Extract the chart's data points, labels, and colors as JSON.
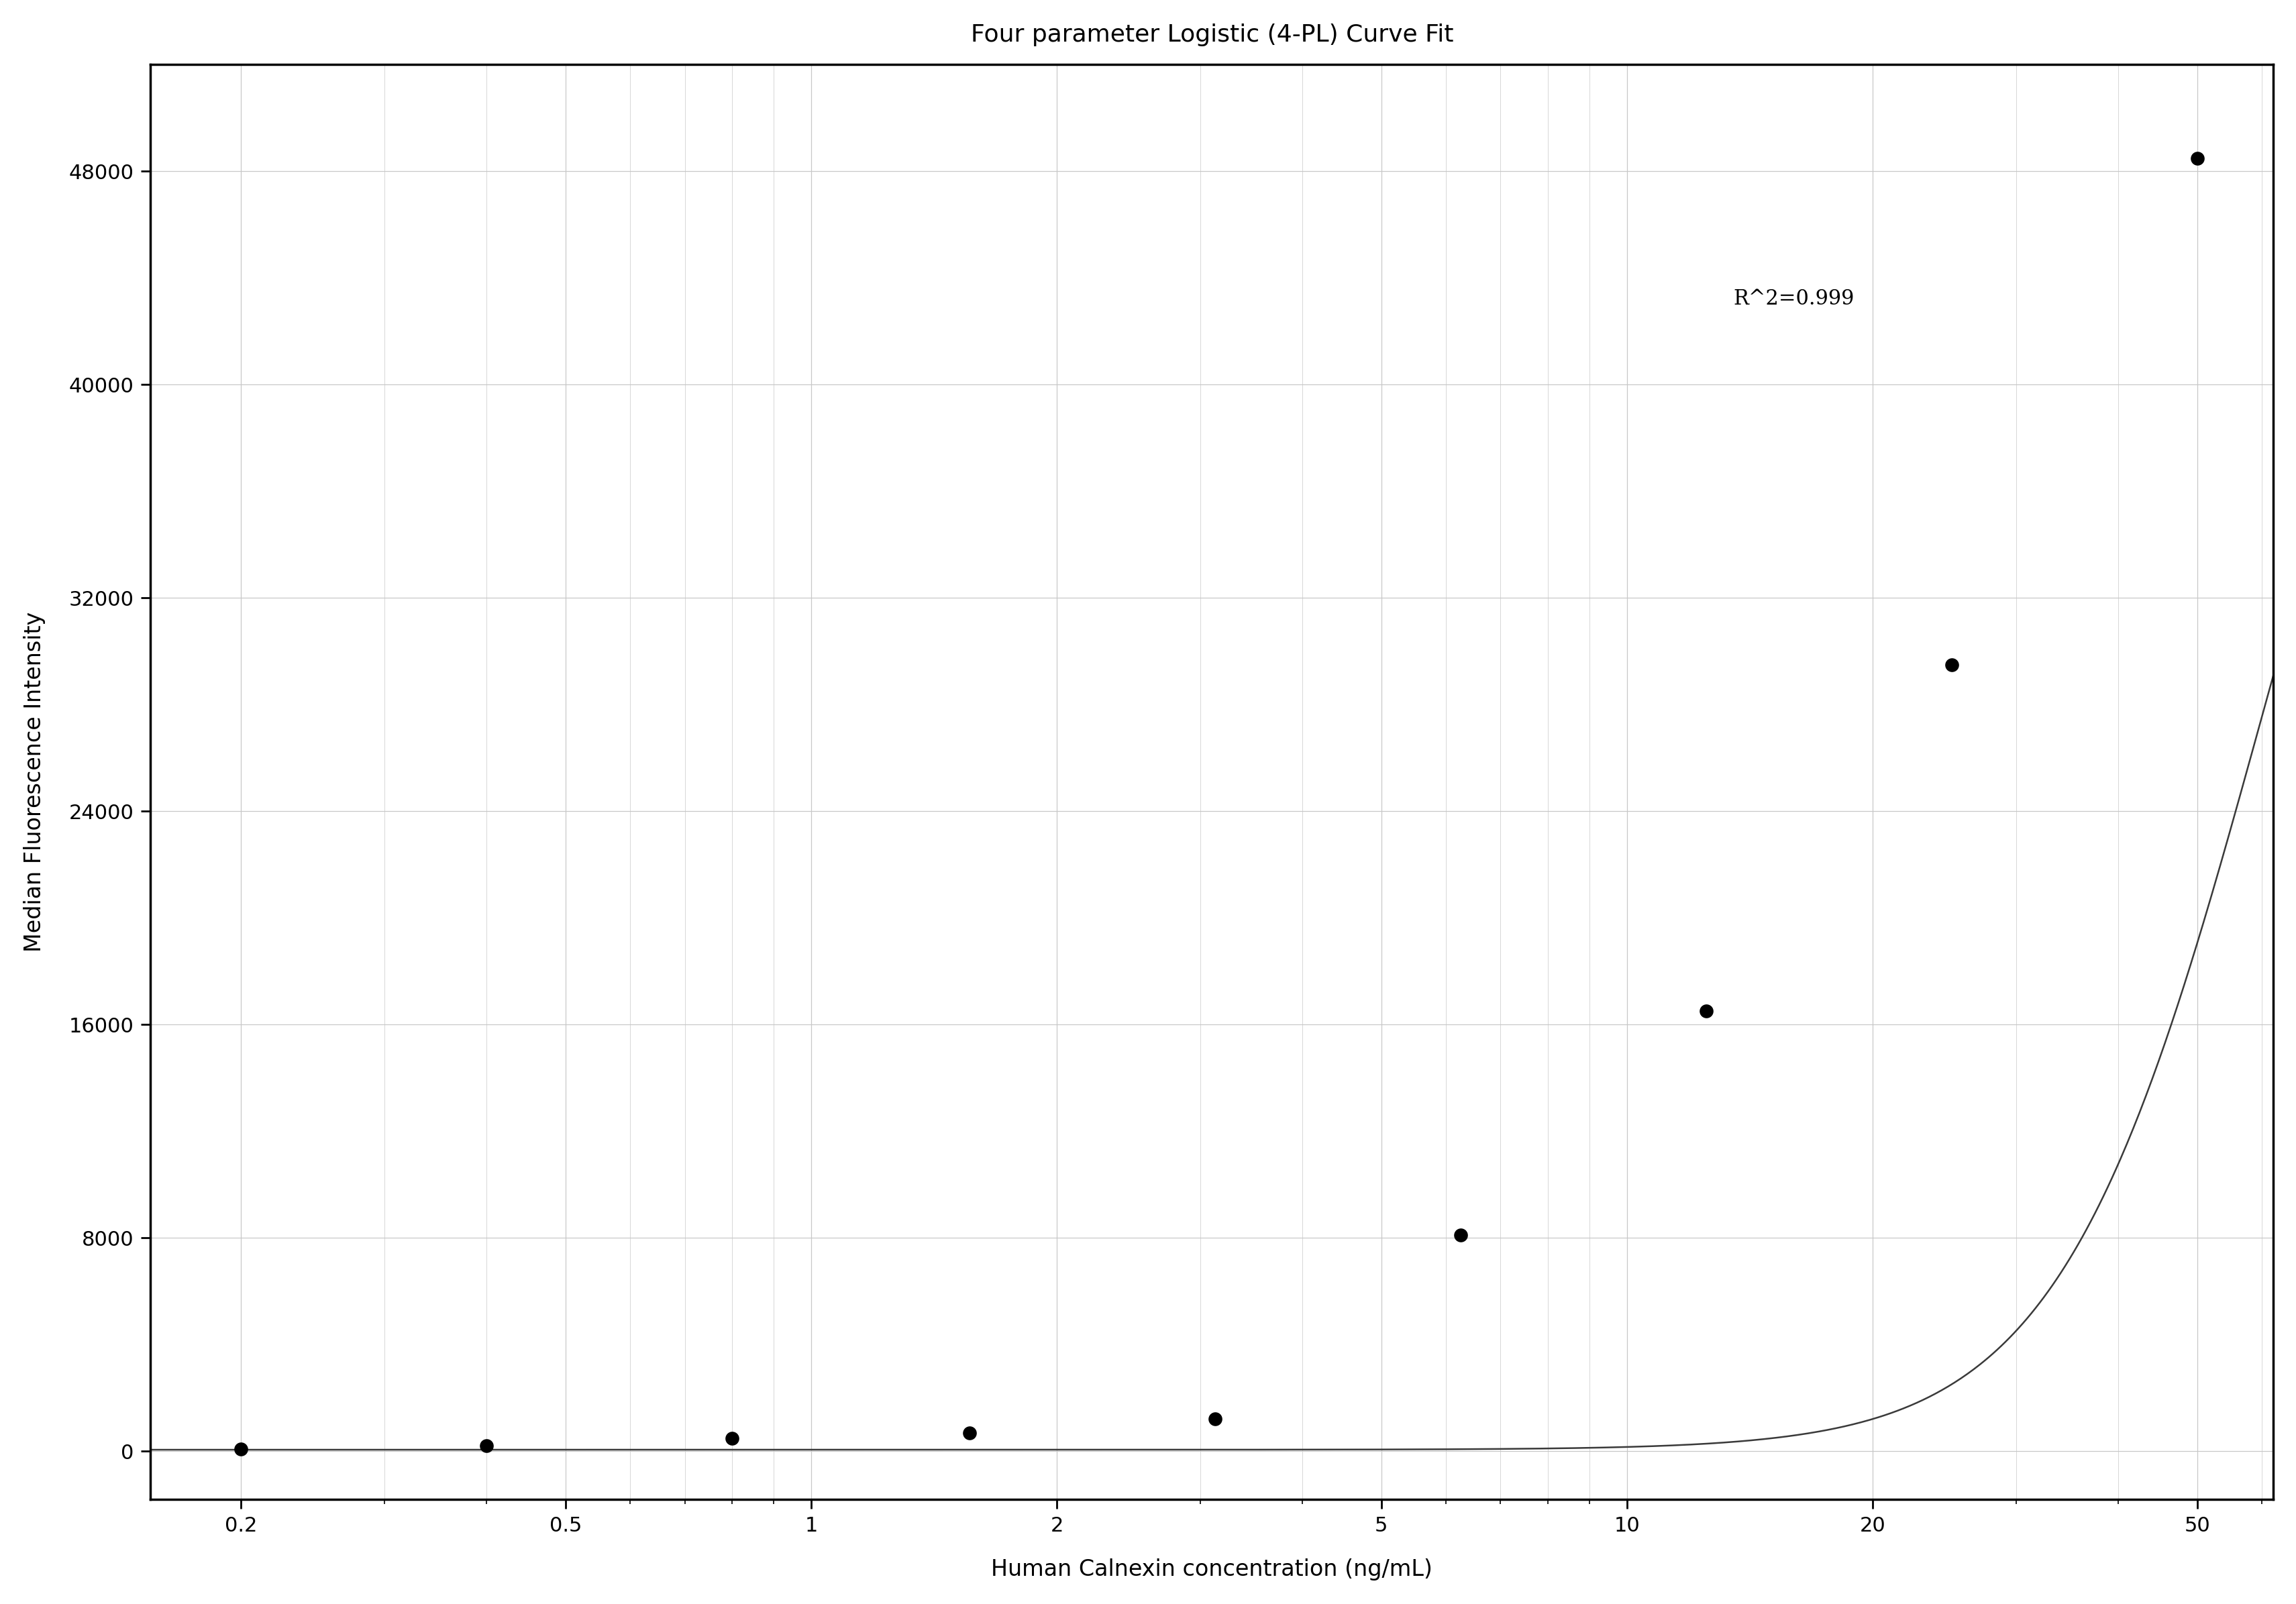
{
  "title": "Four parameter Logistic (4-PL) Curve Fit",
  "xlabel": "Human Calnexin concentration (ng/mL)",
  "ylabel": "Median Fluorescence Intensity",
  "r_squared_text": "R^2=0.999",
  "r_squared_pos": [
    13.5,
    43000
  ],
  "data_x": [
    0.2,
    0.4,
    0.8,
    1.5625,
    3.125,
    6.25,
    12.5,
    25.0,
    50.0
  ],
  "data_y": [
    80,
    190,
    480,
    680,
    1200,
    8100,
    16500,
    29500,
    48500
  ],
  "xticks": [
    0.2,
    0.5,
    1,
    2,
    5,
    10,
    20,
    50
  ],
  "xtick_labels": [
    "0.2",
    "0.5",
    "1",
    "2",
    "5",
    "10",
    "20",
    "50"
  ],
  "yticks": [
    0,
    8000,
    16000,
    24000,
    32000,
    40000,
    48000
  ],
  "ytick_labels": [
    "0",
    "8000",
    "16000",
    "24000",
    "32000",
    "40000",
    "48000"
  ],
  "xlim": [
    0.155,
    62
  ],
  "ylim": [
    -1800,
    52000
  ],
  "background_color": "#ffffff",
  "grid_color": "#c8c8c8",
  "line_color": "#3a3a3a",
  "point_color": "#000000",
  "point_size": 220,
  "line_width": 1.8,
  "title_fontsize": 26,
  "label_fontsize": 24,
  "tick_fontsize": 22,
  "annot_fontsize": 22
}
